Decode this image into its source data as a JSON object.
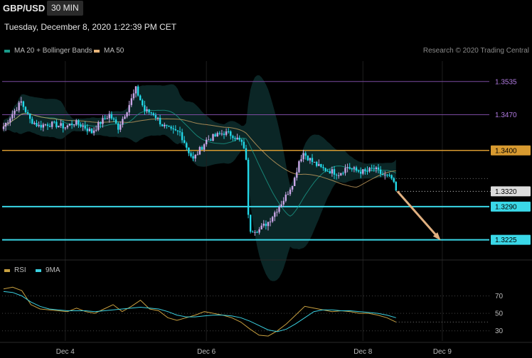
{
  "header": {
    "symbol": "GBP/USD",
    "interval": "30 MIN",
    "datetime": "Tuesday, December 8, 2020 1:22:39 PM CET",
    "credit": "Research © 2020 Trading Central"
  },
  "legend": {
    "main": [
      {
        "label": "MA 20 + Bollinger Bands",
        "color": "#1a9a8a"
      },
      {
        "label": "MA 50",
        "color": "#e6b47a"
      }
    ],
    "rsi": [
      {
        "label": "RSI",
        "color": "#c8a040"
      },
      {
        "label": "9MA",
        "color": "#3ad0e0"
      }
    ]
  },
  "colors": {
    "up": "#c9a6e6",
    "down": "#22d8e8",
    "bb_fill": "#0c2a2a",
    "ma20": "#1a9a8a",
    "ma50": "#c8a060",
    "resistance": "#d89a30",
    "support": "#3ad8e8",
    "purple_line": "#7a4aa0",
    "arrow": "#e0b080"
  },
  "chart_data": [
    {
      "type": "candlestick",
      "symbol": "GBP/USD",
      "timeframe": "30 MIN",
      "x_ticks": [
        "Dec 4",
        "Dec 6",
        "Dec 8",
        "Dec 9"
      ],
      "ylim": [
        1.3205,
        1.3575
      ],
      "price_levels": [
        {
          "label": "1.3535",
          "value": 1.3535,
          "kind": "purple"
        },
        {
          "label": "1.3470",
          "value": 1.347,
          "kind": "purple"
        },
        {
          "label": "1.3400",
          "value": 1.34,
          "kind": "resistance"
        },
        {
          "label": "1.3320",
          "value": 1.332,
          "kind": "current"
        },
        {
          "label": "1.3290",
          "value": 1.329,
          "kind": "support"
        },
        {
          "label": "1.3225",
          "value": 1.3225,
          "kind": "support"
        }
      ],
      "close_path": [
        [
          0,
          1.3447
        ],
        [
          4,
          1.3472
        ],
        [
          8,
          1.3495
        ],
        [
          12,
          1.346
        ],
        [
          16,
          1.3448
        ],
        [
          20,
          1.3452
        ],
        [
          24,
          1.345
        ],
        [
          28,
          1.3446
        ],
        [
          32,
          1.3455
        ],
        [
          36,
          1.3448
        ],
        [
          40,
          1.3436
        ],
        [
          44,
          1.3455
        ],
        [
          48,
          1.347
        ],
        [
          52,
          1.3445
        ],
        [
          56,
          1.348
        ],
        [
          60,
          1.352
        ],
        [
          64,
          1.3478
        ],
        [
          68,
          1.3472
        ],
        [
          72,
          1.345
        ],
        [
          76,
          1.3438
        ],
        [
          80,
          1.3435
        ],
        [
          84,
          1.3398
        ],
        [
          86,
          1.3382
        ],
        [
          88,
          1.3395
        ],
        [
          92,
          1.342
        ],
        [
          96,
          1.3428
        ],
        [
          100,
          1.3435
        ],
        [
          104,
          1.343
        ],
        [
          108,
          1.3415
        ],
        [
          110,
          1.3385
        ],
        [
          111,
          1.327
        ],
        [
          112,
          1.3245
        ],
        [
          116,
          1.3245
        ],
        [
          120,
          1.326
        ],
        [
          124,
          1.3285
        ],
        [
          128,
          1.331
        ],
        [
          132,
          1.3345
        ],
        [
          134,
          1.338
        ],
        [
          136,
          1.3395
        ],
        [
          140,
          1.3378
        ],
        [
          144,
          1.3365
        ],
        [
          148,
          1.336
        ],
        [
          152,
          1.3355
        ],
        [
          156,
          1.3368
        ],
        [
          160,
          1.336
        ],
        [
          164,
          1.3358
        ],
        [
          168,
          1.3364
        ],
        [
          172,
          1.3352
        ],
        [
          176,
          1.3345
        ],
        [
          178,
          1.332
        ]
      ],
      "projection": {
        "from": [
          178,
          1.332
        ],
        "to": [
          197,
          1.323
        ]
      }
    },
    {
      "type": "line",
      "title": "RSI",
      "series": [
        {
          "name": "RSI",
          "values": [
            78,
            80,
            76,
            60,
            55,
            54,
            53,
            52,
            56,
            52,
            50,
            55,
            60,
            52,
            58,
            65,
            55,
            53,
            45,
            42,
            45,
            48,
            52,
            50,
            48,
            45,
            40,
            32,
            25,
            24,
            30,
            38,
            48,
            58,
            56,
            54,
            52,
            53,
            52,
            50,
            50,
            48,
            45,
            40
          ]
        },
        {
          "name": "9MA",
          "values": [
            75,
            74,
            70,
            63,
            58,
            55,
            54,
            53,
            53,
            53,
            52,
            53,
            54,
            55,
            56,
            57,
            56,
            55,
            52,
            48,
            46,
            46,
            47,
            48,
            48,
            47,
            45,
            41,
            36,
            31,
            29,
            32,
            38,
            45,
            52,
            54,
            54,
            53,
            53,
            52,
            51,
            50,
            48,
            45
          ]
        }
      ],
      "y_ticks": [
        "70",
        "50",
        "30"
      ],
      "ylim": [
        20,
        90
      ]
    }
  ]
}
